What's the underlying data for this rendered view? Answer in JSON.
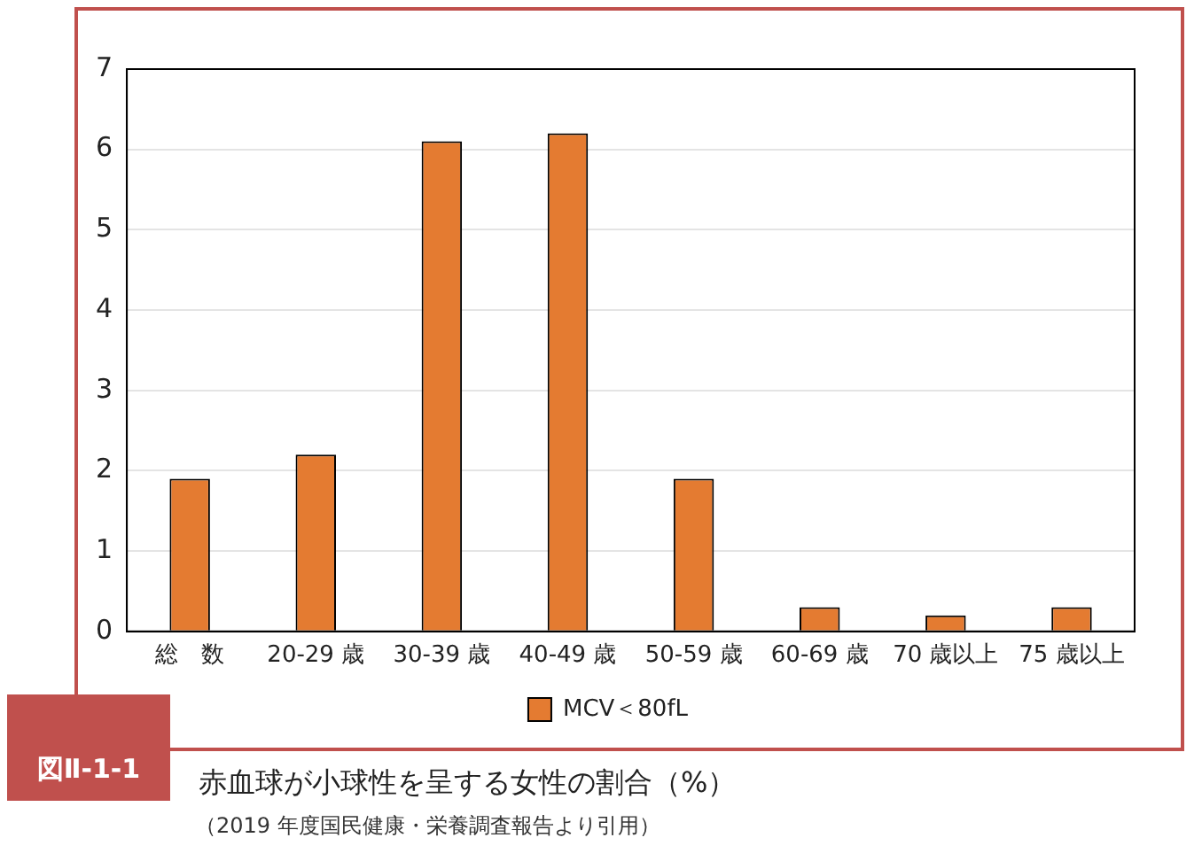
{
  "chart_data": {
    "type": "bar",
    "title": "赤血球が小球性を呈する女性の割合（%）",
    "categories": [
      "総　数",
      "20-29 歳",
      "30-39 歳",
      "40-49 歳",
      "50-59 歳",
      "60-69 歳",
      "70 歳以上",
      "75 歳以上"
    ],
    "series": [
      {
        "name": "MCV＜80fL",
        "color": "#e47b31",
        "values": [
          1.9,
          2.2,
          6.1,
          6.2,
          1.9,
          0.3,
          0.2,
          0.3
        ]
      }
    ],
    "ylim": [
      0,
      7
    ],
    "yticks": [
      0,
      1,
      2,
      3,
      4,
      5,
      6,
      7
    ],
    "grid": "y",
    "legend": "bottom",
    "annotations": [
      "図Ⅱ-1-1",
      "（2019 年度国民健康・栄養調査報告より引用）"
    ]
  }
}
